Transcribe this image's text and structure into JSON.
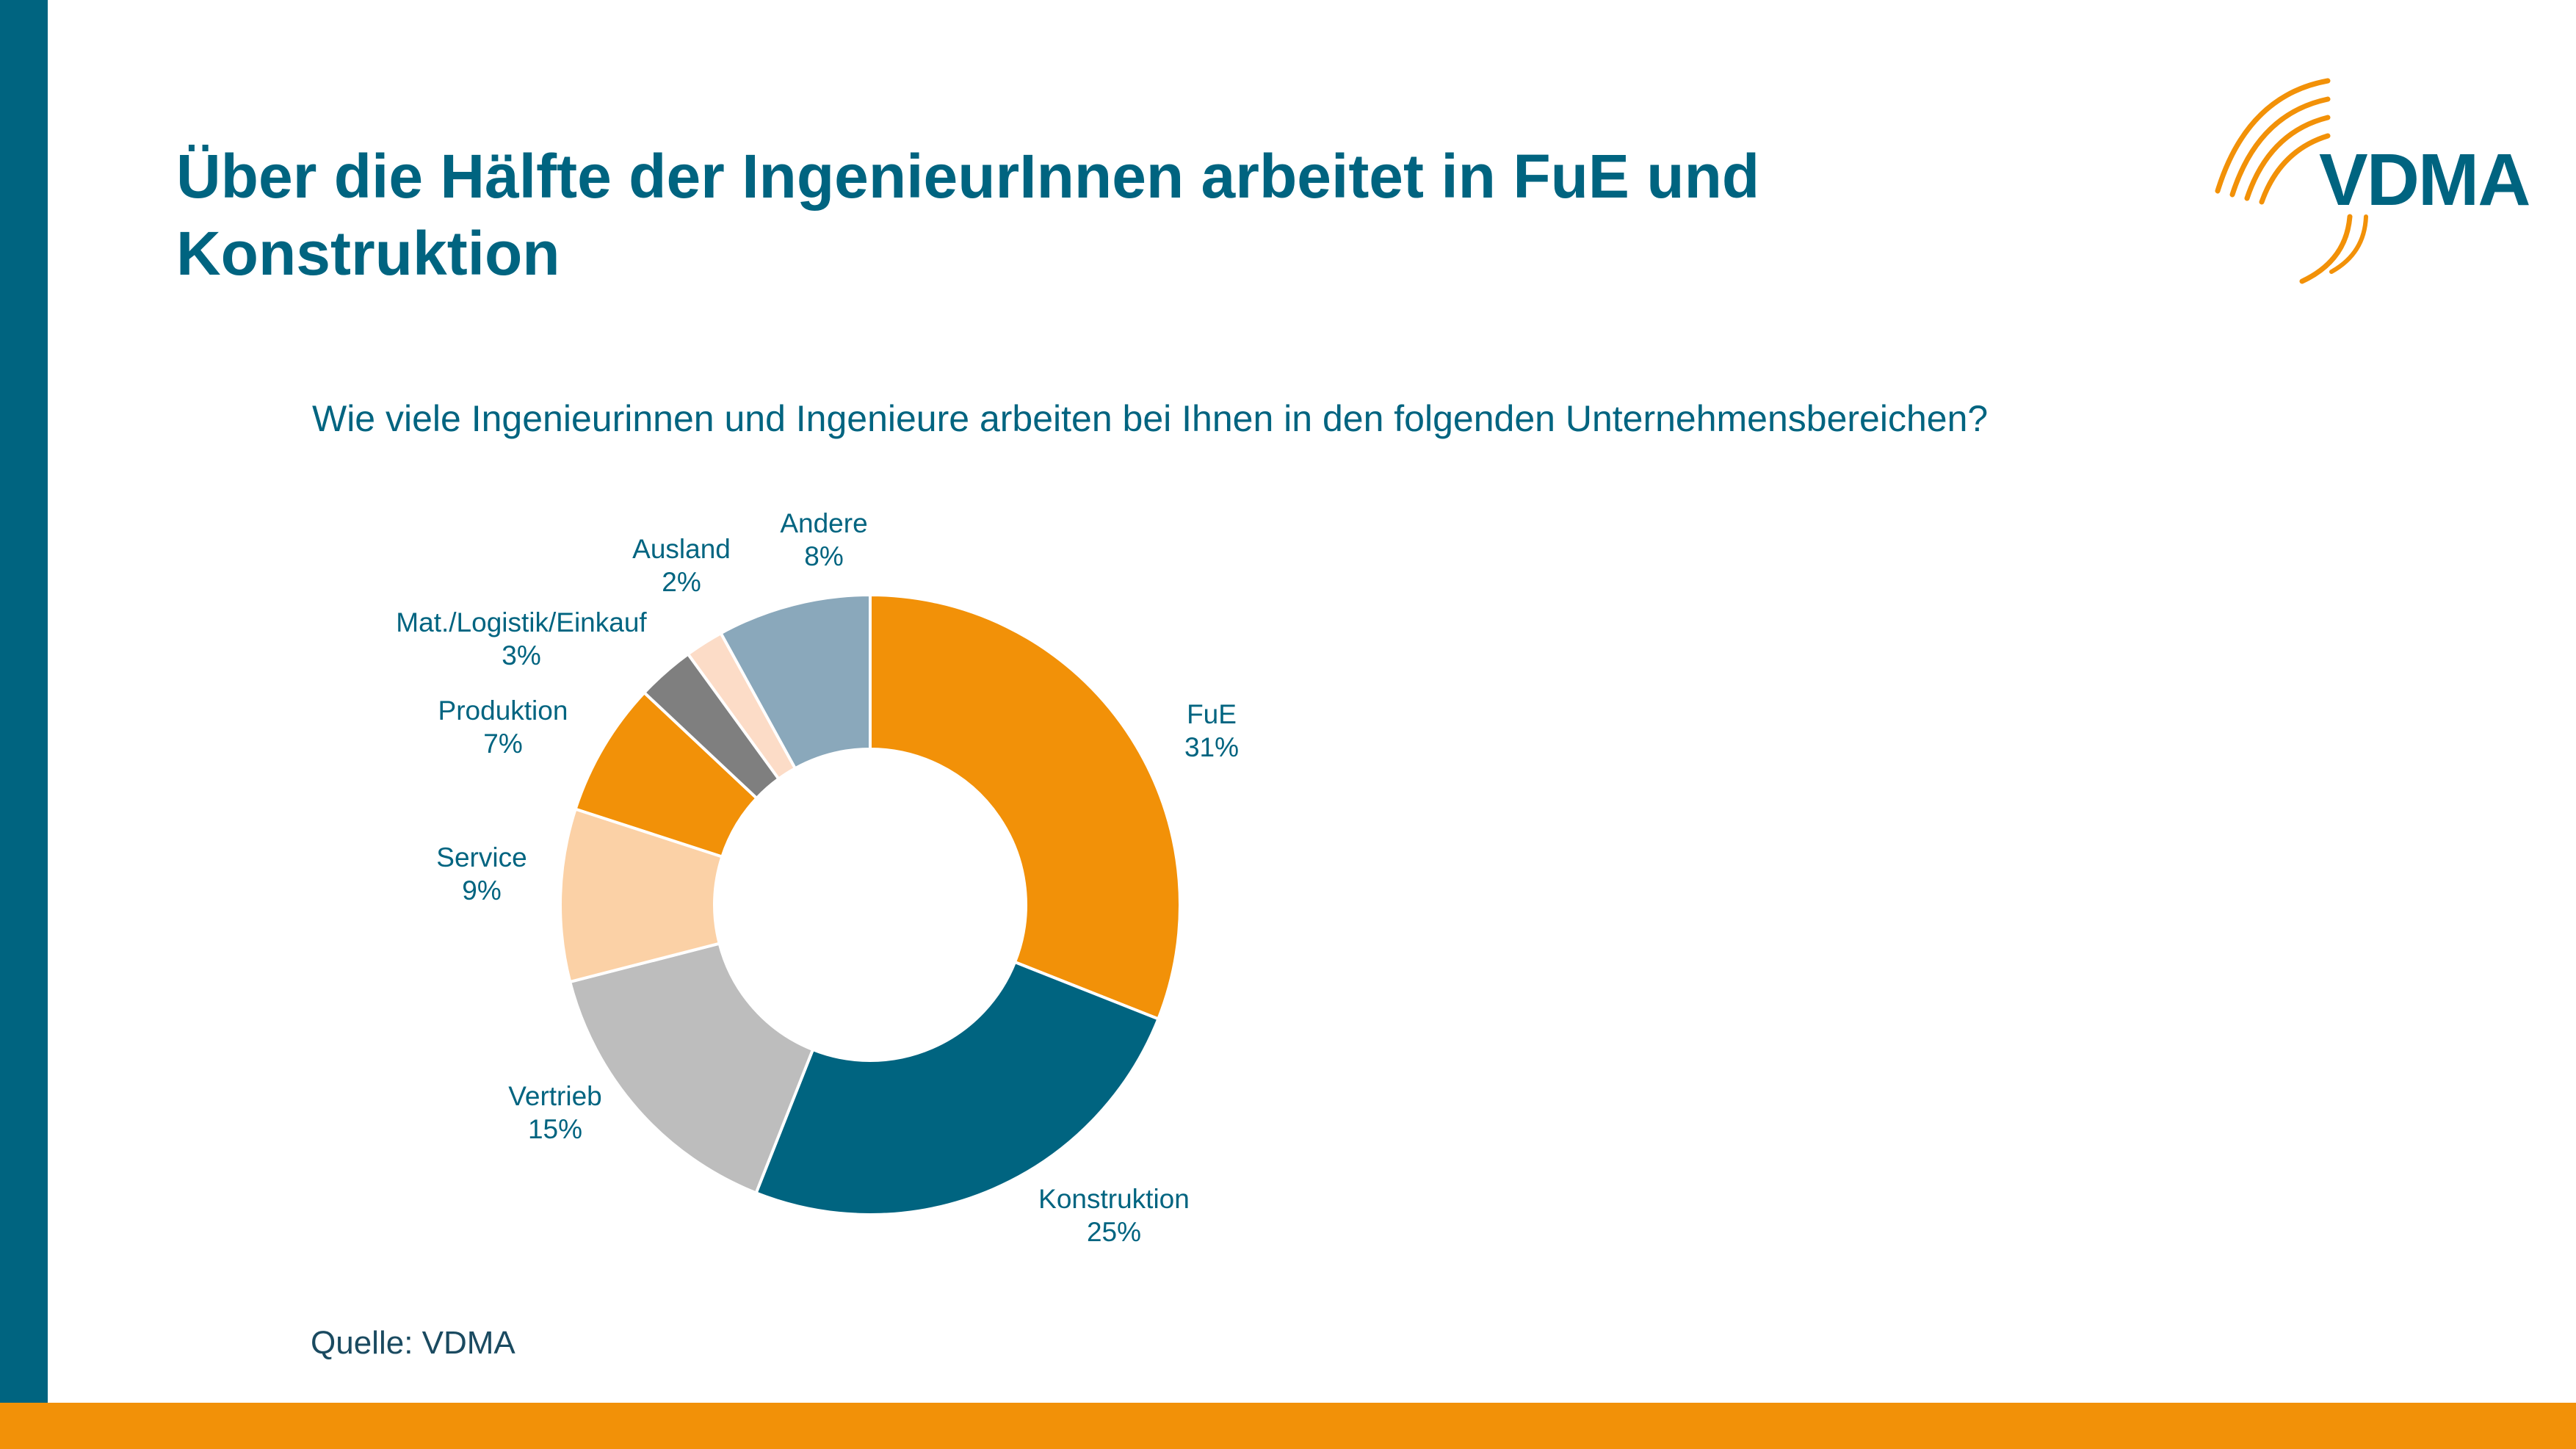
{
  "slide": {
    "title": "Über die Hälfte der IngenieurInnen arbeitet in FuE und Konstruktion",
    "logo_text": "VDMA",
    "source": "Quelle: VDMA"
  },
  "colors": {
    "brand_blue": "#006480",
    "brand_orange": "#f29108"
  },
  "chart_data": {
    "type": "pie",
    "style": "donut",
    "title": "Wie viele Ingenieurinnen und Ingenieure arbeiten bei Ihnen in den folgenden Unternehmensbereichen?",
    "unit": "%",
    "categories": [
      "FuE",
      "Konstruktion",
      "Vertrieb",
      "Service",
      "Produktion",
      "Mat./Logistik/Einkauf",
      "Ausland",
      "Andere"
    ],
    "values": [
      31,
      25,
      15,
      9,
      7,
      3,
      2,
      8
    ],
    "value_labels": [
      "31%",
      "25%",
      "15%",
      "9%",
      "7%",
      "3%",
      "2%",
      "8%"
    ],
    "colors": [
      "#f29108",
      "#006480",
      "#bdbdbd",
      "#fbd1a6",
      "#f29108",
      "#7f7f7f",
      "#fcdcc7",
      "#8aa8bb"
    ],
    "legend": "none (data labels outside slices)"
  }
}
